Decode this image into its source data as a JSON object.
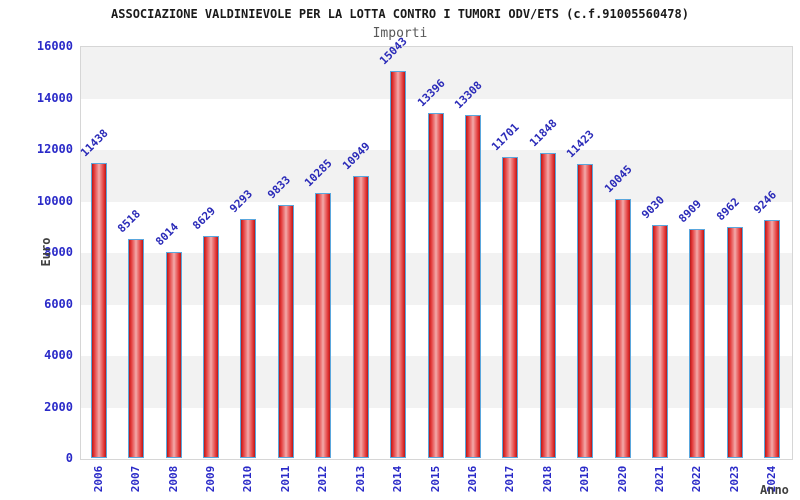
{
  "title": "ASSOCIAZIONE VALDINIEVOLE PER LA LOTTA CONTRO I TUMORI ODV/ETS (c.f.91005560478)",
  "subtitle": "Importi",
  "chart_data": {
    "type": "bar",
    "title": "Importi",
    "xlabel": "Anno",
    "ylabel": "Euro",
    "categories": [
      "2006",
      "2007",
      "2008",
      "2009",
      "2010",
      "2011",
      "2012",
      "2013",
      "2014",
      "2015",
      "2016",
      "2017",
      "2018",
      "2019",
      "2020",
      "2021",
      "2022",
      "2023",
      "2024"
    ],
    "values": [
      11438,
      8518,
      8014,
      8629,
      9293,
      9833,
      10285,
      10949,
      15043,
      13396,
      13308,
      11701,
      11848,
      11423,
      10045,
      9030,
      8909,
      8962,
      9246
    ],
    "ylim": [
      0,
      16000
    ],
    "ytick_step": 2000,
    "yticks": [
      0,
      2000,
      4000,
      6000,
      8000,
      10000,
      12000,
      14000,
      16000
    ],
    "legend": "none",
    "grid": "alternating-horizontal-bands",
    "colors": {
      "bar_edge_red": "#b51a1a",
      "bar_center_pink": "#f3abab",
      "bar_border_blue": "#5aa7dd",
      "tick_label_blue": "#2a2ac8",
      "value_label_blue": "#2a2ab8",
      "band_gray": "#f2f2f2",
      "band_white": "#ffffff",
      "plot_border": "#d6d6d6",
      "title_color": "#1a1a1a",
      "subtitle_color": "#595959",
      "axis_title_color": "#404040"
    }
  }
}
